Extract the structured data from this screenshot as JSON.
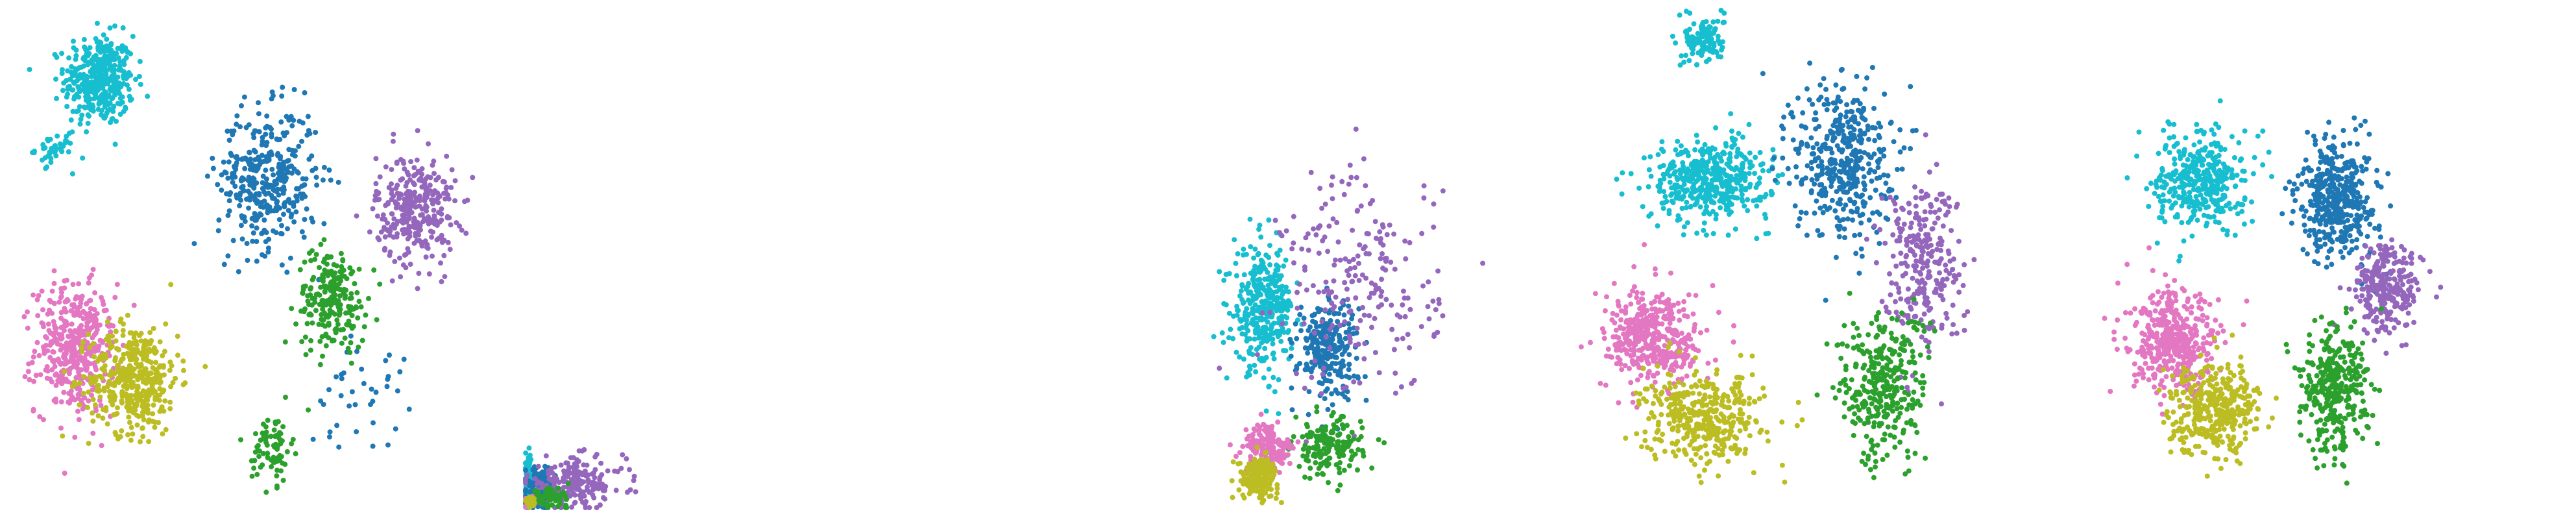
{
  "colors": {
    "cyan": "#17becf",
    "blue": "#1f77b4",
    "purple": "#9467bd",
    "green": "#2ca02c",
    "pink": "#e377c2",
    "olive": "#bcbd22",
    "background": "#ffffff"
  },
  "chart_data": [
    {
      "type": "scatter",
      "title": "",
      "xlabel": "",
      "ylabel": "",
      "xlim": [
        0,
        10
      ],
      "ylim": [
        0,
        10
      ],
      "grid": false,
      "axes_visible": false,
      "legend": "none",
      "series": [
        {
          "color": "#17becf",
          "clusters": [
            {
              "cx": 1.8,
              "cy": 8.6,
              "sx": 0.7,
              "sy": 0.9,
              "n": 400
            },
            {
              "cx": 0.9,
              "cy": 7.2,
              "sx": 0.4,
              "sy": 0.3,
              "n": 40
            }
          ]
        },
        {
          "color": "#e377c2",
          "clusters": [
            {
              "cx": 1.3,
              "cy": 3.2,
              "sx": 0.8,
              "sy": 1.3,
              "n": 420
            }
          ]
        },
        {
          "color": "#bcbd22",
          "clusters": [
            {
              "cx": 2.5,
              "cy": 2.6,
              "sx": 0.9,
              "sy": 1.1,
              "n": 420
            }
          ]
        },
        {
          "color": "#1f77b4",
          "clusters": [
            {
              "cx": 5.2,
              "cy": 6.6,
              "sx": 1.0,
              "sy": 1.4,
              "n": 380
            },
            {
              "cx": 7.0,
              "cy": 2.4,
              "sx": 1.0,
              "sy": 1.2,
              "n": 40
            }
          ]
        },
        {
          "color": "#9467bd",
          "clusters": [
            {
              "cx": 8.2,
              "cy": 6.0,
              "sx": 0.8,
              "sy": 1.1,
              "n": 320
            }
          ]
        },
        {
          "color": "#2ca02c",
          "clusters": [
            {
              "cx": 6.5,
              "cy": 4.2,
              "sx": 0.7,
              "sy": 1.0,
              "n": 220
            },
            {
              "cx": 5.3,
              "cy": 1.2,
              "sx": 0.4,
              "sy": 0.7,
              "n": 80
            }
          ]
        }
      ]
    },
    {
      "type": "scatter",
      "title": "",
      "xlabel": "",
      "ylabel": "",
      "xlim": [
        0,
        10
      ],
      "ylim": [
        0,
        10
      ],
      "grid": false,
      "axes_visible": false,
      "legend": "none",
      "series": [
        {
          "color": "#17becf",
          "clusters": [
            {
              "cx": 0.05,
              "cy": 0.5,
              "sx": 0.06,
              "sy": 0.5,
              "n": 200
            }
          ]
        },
        {
          "color": "#1f77b4",
          "clusters": [
            {
              "cx": 0.3,
              "cy": 0.4,
              "sx": 0.3,
              "sy": 0.4,
              "n": 120
            }
          ]
        },
        {
          "color": "#9467bd",
          "clusters": [
            {
              "cx": 1.0,
              "cy": 0.5,
              "sx": 1.0,
              "sy": 0.5,
              "n": 200
            }
          ]
        },
        {
          "color": "#2ca02c",
          "clusters": [
            {
              "cx": 0.5,
              "cy": 0.2,
              "sx": 0.4,
              "sy": 0.2,
              "n": 60
            }
          ]
        },
        {
          "color": "#e377c2",
          "clusters": [
            {
              "cx": 0.1,
              "cy": 0.1,
              "sx": 0.1,
              "sy": 0.1,
              "n": 40
            }
          ]
        },
        {
          "color": "#bcbd22",
          "clusters": [
            {
              "cx": 0.1,
              "cy": 0.1,
              "sx": 0.1,
              "sy": 0.1,
              "n": 40
            }
          ]
        }
      ]
    },
    {
      "type": "scatter",
      "title": "",
      "xlabel": "",
      "ylabel": "",
      "xlim": [
        0,
        10
      ],
      "ylim": [
        0,
        10
      ],
      "grid": false,
      "axes_visible": false,
      "legend": "none",
      "series": [
        {
          "color": "#17becf",
          "clusters": [
            {
              "cx": 4.5,
              "cy": 4.0,
              "sx": 0.6,
              "sy": 1.2,
              "n": 350
            }
          ]
        },
        {
          "color": "#1f77b4",
          "clusters": [
            {
              "cx": 5.8,
              "cy": 3.2,
              "sx": 0.6,
              "sy": 1.0,
              "n": 250
            }
          ]
        },
        {
          "color": "#9467bd",
          "clusters": [
            {
              "cx": 6.5,
              "cy": 4.5,
              "sx": 1.6,
              "sy": 2.3,
              "n": 220
            }
          ]
        },
        {
          "color": "#2ca02c",
          "clusters": [
            {
              "cx": 5.8,
              "cy": 1.2,
              "sx": 0.7,
              "sy": 0.6,
              "n": 160
            }
          ]
        },
        {
          "color": "#e377c2",
          "clusters": [
            {
              "cx": 4.6,
              "cy": 1.2,
              "sx": 0.5,
              "sy": 0.5,
              "n": 170
            }
          ]
        },
        {
          "color": "#bcbd22",
          "clusters": [
            {
              "cx": 4.4,
              "cy": 0.6,
              "sx": 0.4,
              "sy": 0.4,
              "n": 170
            }
          ]
        }
      ]
    },
    {
      "type": "scatter",
      "title": "",
      "xlabel": "",
      "ylabel": "",
      "xlim": [
        0,
        10
      ],
      "ylim": [
        0,
        10
      ],
      "grid": false,
      "axes_visible": false,
      "legend": "none",
      "series": [
        {
          "color": "#17becf",
          "clusters": [
            {
              "cx": 3.1,
              "cy": 6.6,
              "sx": 1.2,
              "sy": 0.8,
              "n": 450
            },
            {
              "cx": 3.0,
              "cy": 9.4,
              "sx": 0.4,
              "sy": 0.5,
              "n": 120
            }
          ]
        },
        {
          "color": "#1f77b4",
          "clusters": [
            {
              "cx": 5.8,
              "cy": 7.0,
              "sx": 1.0,
              "sy": 1.6,
              "n": 420
            }
          ]
        },
        {
          "color": "#9467bd",
          "clusters": [
            {
              "cx": 7.4,
              "cy": 5.0,
              "sx": 0.8,
              "sy": 1.7,
              "n": 280
            }
          ]
        },
        {
          "color": "#2ca02c",
          "clusters": [
            {
              "cx": 6.6,
              "cy": 2.4,
              "sx": 0.9,
              "sy": 1.5,
              "n": 330
            }
          ]
        },
        {
          "color": "#e377c2",
          "clusters": [
            {
              "cx": 2.0,
              "cy": 3.4,
              "sx": 1.0,
              "sy": 1.0,
              "n": 400
            }
          ]
        },
        {
          "color": "#bcbd22",
          "clusters": [
            {
              "cx": 3.0,
              "cy": 1.8,
              "sx": 1.2,
              "sy": 0.9,
              "n": 380
            }
          ]
        }
      ]
    },
    {
      "type": "scatter",
      "title": "",
      "xlabel": "",
      "ylabel": "",
      "xlim": [
        0,
        10
      ],
      "ylim": [
        0,
        10
      ],
      "grid": false,
      "axes_visible": false,
      "legend": "none",
      "series": [
        {
          "color": "#17becf",
          "clusters": [
            {
              "cx": 2.6,
              "cy": 6.6,
              "sx": 0.9,
              "sy": 1.0,
              "n": 380
            }
          ]
        },
        {
          "color": "#1f77b4",
          "clusters": [
            {
              "cx": 5.4,
              "cy": 6.2,
              "sx": 0.8,
              "sy": 1.2,
              "n": 420
            }
          ]
        },
        {
          "color": "#9467bd",
          "clusters": [
            {
              "cx": 6.4,
              "cy": 4.4,
              "sx": 0.7,
              "sy": 0.9,
              "n": 260
            }
          ]
        },
        {
          "color": "#2ca02c",
          "clusters": [
            {
              "cx": 5.3,
              "cy": 2.4,
              "sx": 0.7,
              "sy": 1.3,
              "n": 340
            }
          ]
        },
        {
          "color": "#e377c2",
          "clusters": [
            {
              "cx": 2.1,
              "cy": 3.3,
              "sx": 0.9,
              "sy": 1.0,
              "n": 420
            }
          ]
        },
        {
          "color": "#bcbd22",
          "clusters": [
            {
              "cx": 2.9,
              "cy": 2.0,
              "sx": 0.9,
              "sy": 0.9,
              "n": 380
            }
          ]
        }
      ]
    }
  ]
}
